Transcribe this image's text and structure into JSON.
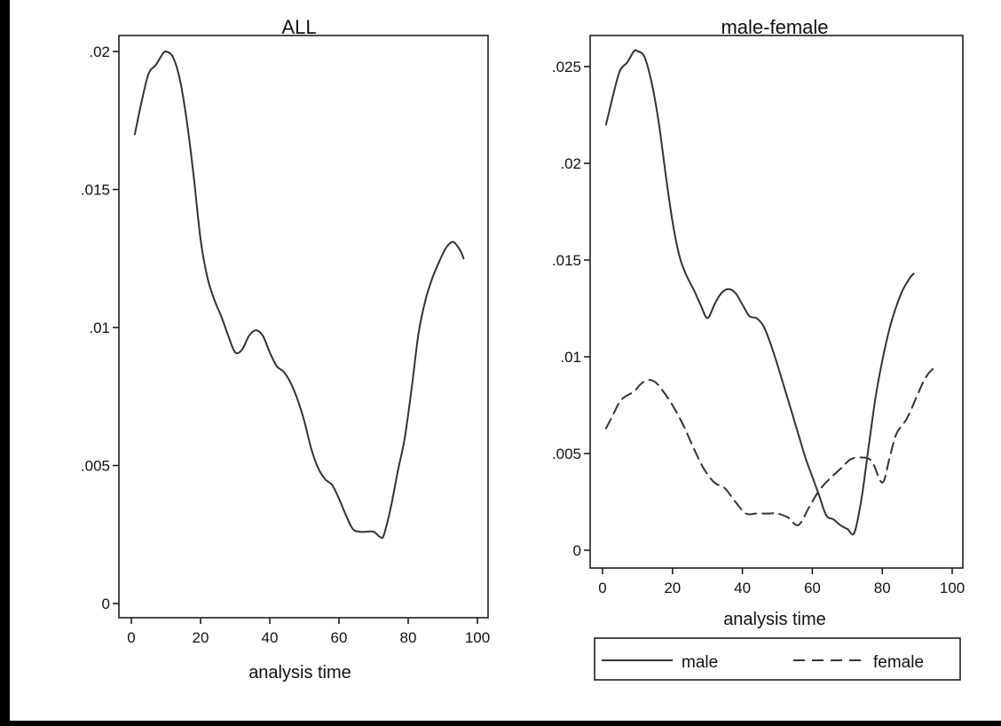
{
  "chart_data": [
    {
      "type": "line",
      "title": "ALL",
      "xlabel": "analysis time",
      "ylabel": "",
      "xlim": [
        0,
        100
      ],
      "ylim": [
        0,
        0.02
      ],
      "x_ticks": [
        0,
        20,
        40,
        60,
        80,
        100
      ],
      "x_tick_labels": [
        "0",
        "20",
        "40",
        "60",
        "80",
        "100"
      ],
      "y_ticks": [
        0,
        0.005,
        0.01,
        0.015,
        0.02
      ],
      "y_tick_labels": [
        "0",
        ".005",
        ".01",
        ".015",
        ".02"
      ],
      "grid": false,
      "series": [
        {
          "name": "",
          "style": "solid",
          "color": "#333333",
          "x": [
            1,
            3,
            5,
            7,
            9,
            10,
            12,
            14,
            16,
            18,
            20,
            22,
            24,
            26,
            28,
            30,
            32,
            34,
            36,
            38,
            40,
            42,
            44,
            46,
            48,
            50,
            52,
            54,
            56,
            58,
            60,
            62,
            64,
            66,
            68,
            70,
            72,
            73,
            75,
            77,
            79,
            81,
            83,
            85,
            87,
            89,
            91,
            93,
            95,
            96
          ],
          "y": [
            0.017,
            0.0182,
            0.0192,
            0.0195,
            0.0199,
            0.02,
            0.0198,
            0.019,
            0.0175,
            0.0155,
            0.0132,
            0.0118,
            0.011,
            0.0104,
            0.0097,
            0.0091,
            0.0092,
            0.0097,
            0.0099,
            0.0097,
            0.0091,
            0.0086,
            0.0084,
            0.008,
            0.0074,
            0.0066,
            0.0056,
            0.0049,
            0.0045,
            0.0043,
            0.0038,
            0.0032,
            0.0027,
            0.0026,
            0.0026,
            0.0026,
            0.0024,
            0.0025,
            0.0035,
            0.0048,
            0.006,
            0.0078,
            0.0098,
            0.011,
            0.0118,
            0.0124,
            0.0129,
            0.0131,
            0.0128,
            0.0125
          ]
        }
      ]
    },
    {
      "type": "line",
      "title": "male-female",
      "xlabel": "analysis time",
      "ylabel": "",
      "xlim": [
        0,
        100
      ],
      "ylim": [
        0,
        0.025
      ],
      "x_ticks": [
        0,
        20,
        40,
        60,
        80,
        100
      ],
      "x_tick_labels": [
        "0",
        "20",
        "40",
        "60",
        "80",
        "100"
      ],
      "y_ticks": [
        0,
        0.005,
        0.01,
        0.015,
        0.02,
        0.025
      ],
      "y_tick_labels": [
        "0",
        ".005",
        ".01",
        ".015",
        ".02",
        ".025"
      ],
      "grid": false,
      "legend": {
        "position": "bottom",
        "entries": [
          "male",
          "female"
        ]
      },
      "series": [
        {
          "name": "male",
          "style": "solid",
          "color": "#333333",
          "x": [
            1,
            3,
            5,
            7,
            9,
            10,
            12,
            14,
            16,
            18,
            20,
            22,
            24,
            26,
            28,
            30,
            32,
            34,
            36,
            38,
            40,
            42,
            44,
            46,
            48,
            50,
            52,
            54,
            56,
            58,
            60,
            62,
            64,
            66,
            68,
            70,
            72,
            74,
            76,
            78,
            80,
            82,
            84,
            86,
            88,
            89
          ],
          "y": [
            0.022,
            0.0235,
            0.0248,
            0.0252,
            0.0258,
            0.0258,
            0.0255,
            0.0242,
            0.0222,
            0.0195,
            0.017,
            0.0152,
            0.0142,
            0.0135,
            0.0127,
            0.012,
            0.0127,
            0.0133,
            0.0135,
            0.0133,
            0.0127,
            0.0121,
            0.012,
            0.0116,
            0.0107,
            0.0096,
            0.0084,
            0.0072,
            0.006,
            0.0048,
            0.0038,
            0.0028,
            0.0018,
            0.0016,
            0.0013,
            0.0011,
            0.0009,
            0.0026,
            0.0052,
            0.0078,
            0.0098,
            0.0114,
            0.0126,
            0.0135,
            0.0141,
            0.0143
          ]
        },
        {
          "name": "female",
          "style": "dashed",
          "color": "#333333",
          "x": [
            1,
            3,
            5,
            7,
            9,
            11,
            13,
            15,
            17,
            20,
            23,
            26,
            29,
            32,
            35,
            38,
            41,
            44,
            47,
            50,
            53,
            56,
            59,
            62,
            65,
            68,
            71,
            74,
            77,
            80,
            82,
            84,
            87,
            90,
            92,
            94,
            96
          ],
          "y": [
            0.0063,
            0.007,
            0.0077,
            0.008,
            0.0082,
            0.0086,
            0.0088,
            0.0087,
            0.0083,
            0.0075,
            0.0065,
            0.0053,
            0.0042,
            0.0035,
            0.0032,
            0.0025,
            0.0019,
            0.0019,
            0.0019,
            0.0019,
            0.0017,
            0.0013,
            0.0022,
            0.0031,
            0.0037,
            0.0042,
            0.0047,
            0.0048,
            0.0046,
            0.0035,
            0.0047,
            0.006,
            0.0068,
            0.008,
            0.0088,
            0.0093,
            0.0095
          ]
        }
      ]
    }
  ]
}
